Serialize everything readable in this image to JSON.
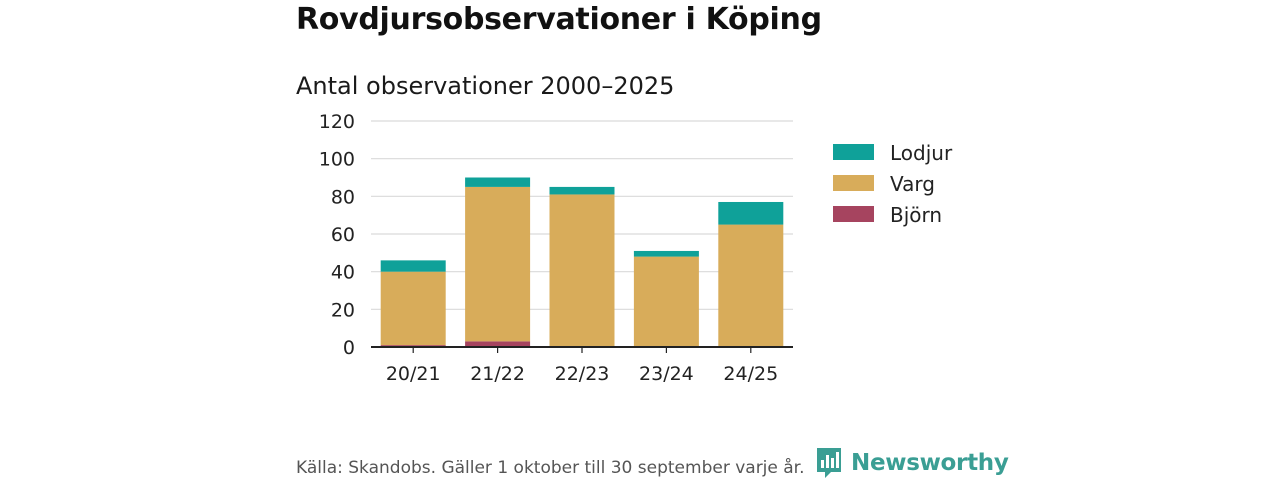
{
  "title": "Rovdjursobservationer i Köping",
  "subtitle": "Antal observationer 2000–2025",
  "source": "Källa: Skandobs. Gäller 1 oktober till 30 september varje år.",
  "brand": {
    "name": "Newsworthy",
    "icon": "newsworthy-logo-icon"
  },
  "colors": {
    "Lodjur": "#0fa199",
    "Varg": "#d8ac5a",
    "Björn": "#a6445f",
    "grid": "#d9d9d9",
    "axis": "#222222"
  },
  "chart_data": {
    "type": "bar",
    "stacked": true,
    "title": "Rovdjursobservationer i Köping",
    "subtitle": "Antal observationer 2000–2025",
    "categories": [
      "20/21",
      "21/22",
      "22/23",
      "23/24",
      "24/25"
    ],
    "series": [
      {
        "name": "Björn",
        "values": [
          1,
          3,
          0,
          0,
          0
        ]
      },
      {
        "name": "Varg",
        "values": [
          39,
          82,
          81,
          48,
          65
        ]
      },
      {
        "name": "Lodjur",
        "values": [
          6,
          5,
          4,
          3,
          12
        ]
      }
    ],
    "legend": [
      "Lodjur",
      "Varg",
      "Björn"
    ],
    "legend_position": "right",
    "ylim": [
      0,
      120
    ],
    "yticks": [
      0,
      20,
      40,
      60,
      80,
      100,
      120
    ],
    "xlabel": "",
    "ylabel": "",
    "grid": true
  }
}
